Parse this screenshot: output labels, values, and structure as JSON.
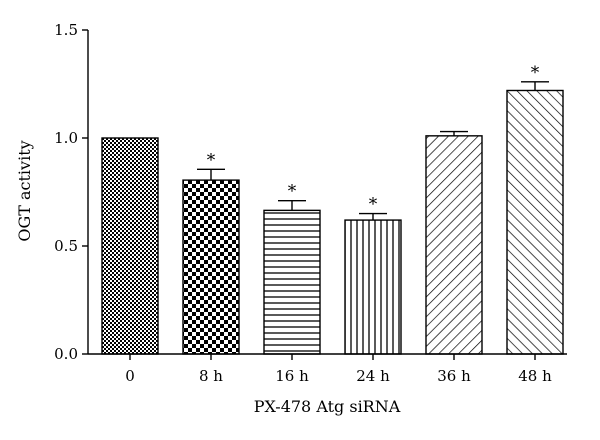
{
  "chart_data": {
    "type": "bar",
    "title": "",
    "xlabel": "PX-478 Atg siRNA",
    "ylabel": "OGT activity",
    "ylim": [
      0,
      1.5
    ],
    "yticks": [
      0.0,
      0.5,
      1.0,
      1.5
    ],
    "ytick_labels": [
      "0.0",
      "0.5",
      "1.0",
      "1.5"
    ],
    "grid": false,
    "legend": "none",
    "categories": [
      "0",
      "8 h",
      "16 h",
      "24 h",
      "36 h",
      "48 h"
    ],
    "values": [
      1.0,
      0.805,
      0.665,
      0.62,
      1.01,
      1.22
    ],
    "errors": [
      0.0,
      0.05,
      0.045,
      0.03,
      0.02,
      0.04
    ],
    "significance": [
      "",
      "*",
      "*",
      "*",
      "",
      "*"
    ],
    "patterns": [
      "fine-checker",
      "coarse-checker",
      "horizontal-lines",
      "vertical-lines",
      "diagonal-right",
      "diagonal-left"
    ]
  }
}
